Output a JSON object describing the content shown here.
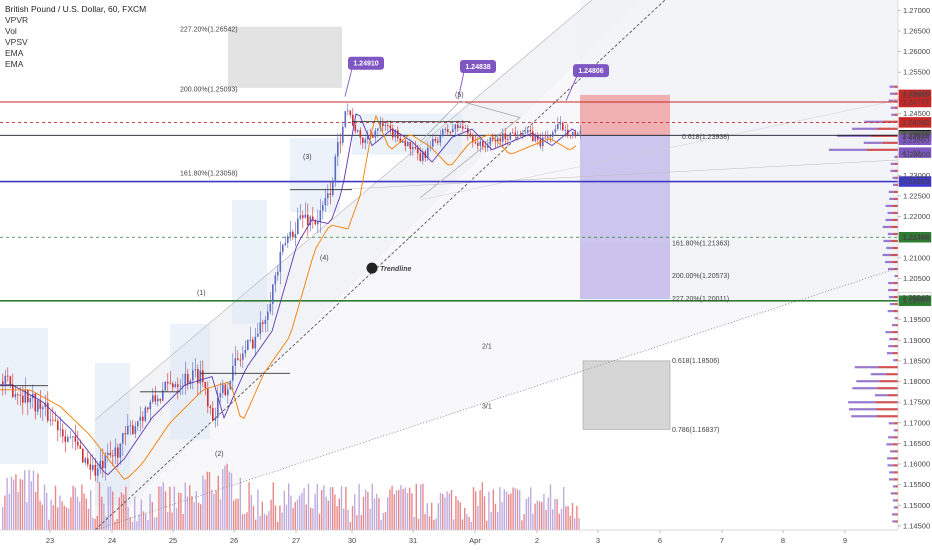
{
  "chart_data": {
    "type": "candlestick",
    "title": "British Pound / U.S. Dollar, 60, FXCM",
    "indicators": [
      "VPVR",
      "Vol",
      "VPSV",
      "EMA",
      "EMA"
    ],
    "ylim": [
      1.144,
      1.2725
    ],
    "y_ticks": [
      "1.27000",
      "1.26500",
      "1.26000",
      "1.25500",
      "1.25000",
      "1.24500",
      "1.24000",
      "1.23500",
      "1.23000",
      "1.22500",
      "1.22000",
      "1.21500",
      "1.21000",
      "1.20500",
      "1.20000",
      "1.19500",
      "1.19000",
      "1.18500",
      "1.18000",
      "1.17500",
      "1.17000",
      "1.16500",
      "1.16000",
      "1.15500",
      "1.15000",
      "1.14500"
    ],
    "x_labels": [
      "23",
      "24",
      "25",
      "26",
      "27",
      "30",
      "31",
      "Apr",
      "2",
      "3",
      "6",
      "7",
      "8",
      "9"
    ],
    "price_tags": [
      {
        "label": "1.24949",
        "price": 1.24949,
        "color": "#c62828"
      },
      {
        "label": "1.24777",
        "price": 1.24777,
        "color": "#c62828"
      },
      {
        "label": "1.24282",
        "price": 1.24282,
        "color": "#c62828"
      },
      {
        "label": "1.23970",
        "price": 1.2397,
        "color": "#131722"
      },
      {
        "label": "1.23944",
        "price": 1.23944,
        "color": "#616161"
      },
      {
        "label": "1.23860",
        "price": 1.2386,
        "color": "#7e57c2"
      },
      {
        "label": "41:22",
        "price": 1.2355,
        "color": "#7e57c2"
      },
      {
        "label": "1.22849",
        "price": 1.22849,
        "color": "#3f39c5"
      },
      {
        "label": "1.21498",
        "price": 1.21498,
        "color": "#2e7d32"
      },
      {
        "label": "1.20042",
        "price": 1.20042,
        "color": "#ffffff"
      },
      {
        "label": "1.19957",
        "price": 1.19957,
        "color": "#2e7d32"
      }
    ],
    "fib_labels": [
      {
        "text": "227.20%(1.26542)",
        "price": 1.26542
      },
      {
        "text": "200.00%(1.25093)",
        "price": 1.25093
      },
      {
        "text": "161.80%(1.23058)",
        "price": 1.23058
      },
      {
        "text": "0.618(1.23938)",
        "price": 1.23938
      },
      {
        "text": "161.80%(1.21363)",
        "price": 1.21363
      },
      {
        "text": "200.00%(1.20573)",
        "price": 1.20573
      },
      {
        "text": "227.20%(1.20011)",
        "price": 1.20011
      },
      {
        "text": "0.618(1.18506)",
        "price": 1.18506
      },
      {
        "text": "0.786(1.16837)",
        "price": 1.16837
      }
    ],
    "callouts": [
      "1.24910",
      "1.24838",
      "1.24806"
    ],
    "wave_labels": [
      "(1)",
      "(2)",
      "(3)",
      "(4)",
      "(5)"
    ],
    "fan_labels": [
      "2/1",
      "3/1"
    ],
    "annotation": "Trendline",
    "horizontal_levels": [
      {
        "price": 1.24777,
        "color": "#c62828"
      },
      {
        "price": 1.2397,
        "color": "#131722"
      },
      {
        "price": 1.22849,
        "color": "#3f39c5"
      },
      {
        "price": 1.19957,
        "color": "#2e7d32"
      },
      {
        "price": 1.21498,
        "color": "#2e7d32",
        "dashed": true
      },
      {
        "price": 1.24282,
        "color": "#c62828",
        "dashed": true
      }
    ],
    "grid": false
  }
}
